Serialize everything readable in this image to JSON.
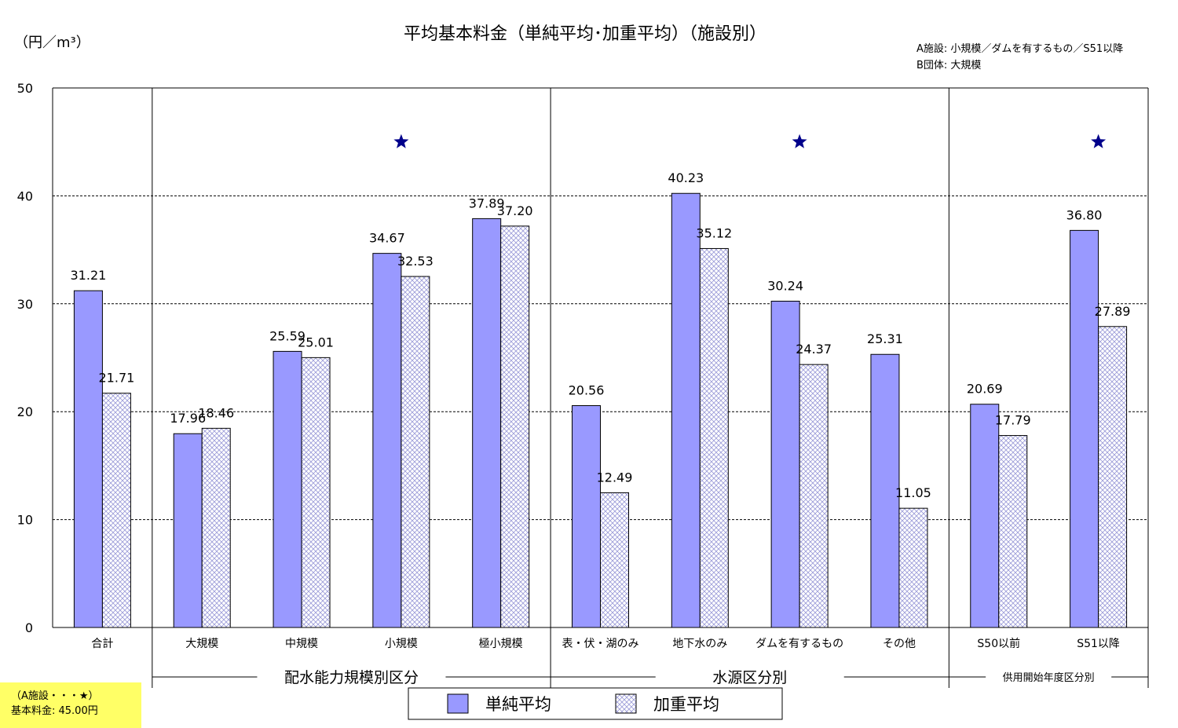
{
  "chart_data": {
    "type": "bar",
    "title": "平均基本料金（単純平均･加重平均）（施設別）",
    "ylabel": "（円／m³）",
    "ylim": [
      0,
      50
    ],
    "yticks": [
      "0",
      "10",
      "20",
      "30",
      "40",
      "50"
    ],
    "grid": true,
    "categories": [
      "合計",
      "大規模",
      "中規模",
      "小規模",
      "極小規模",
      "表・伏・湖のみ",
      "地下水のみ",
      "ダムを有するもの",
      "その他",
      "S50以前",
      "S51以降"
    ],
    "series": [
      {
        "name": "単純平均",
        "color": "#9999ff",
        "values": [
          31.21,
          17.96,
          25.59,
          34.67,
          37.89,
          20.56,
          40.23,
          30.24,
          25.31,
          20.69,
          36.8
        ],
        "labels": [
          "31.21",
          "17.96",
          "25.59",
          "34.67",
          "37.89",
          "20.56",
          "40.23",
          "30.24",
          "25.31",
          "20.69",
          "36.80"
        ]
      },
      {
        "name": "加重平均",
        "color": "#dcdcf4",
        "values": [
          21.71,
          18.46,
          25.01,
          32.53,
          37.2,
          12.49,
          35.12,
          24.37,
          11.05,
          17.79,
          27.89
        ],
        "labels": [
          "21.71",
          "18.46",
          "25.01",
          "32.53",
          "37.20",
          "12.49",
          "35.12",
          "24.37",
          "11.05",
          "17.79",
          "27.89"
        ]
      }
    ],
    "groups": [
      {
        "label": "配水能力規模別区分",
        "from": 1,
        "to": 4
      },
      {
        "label": "水源区分別",
        "from": 5,
        "to": 8
      },
      {
        "label": "供用開始年度区分別",
        "from": 9,
        "to": 10
      }
    ],
    "star_value": 45.0,
    "star_categories": [
      3,
      7,
      10
    ],
    "legend_position": "bottom",
    "notes": [
      "A施設: 小規模／ダムを有するもの／S51以降",
      "B団体: 大規模"
    ]
  },
  "footnote": {
    "line1": "（A施設・・・★）",
    "line2": "基本料金: 45.00円"
  }
}
